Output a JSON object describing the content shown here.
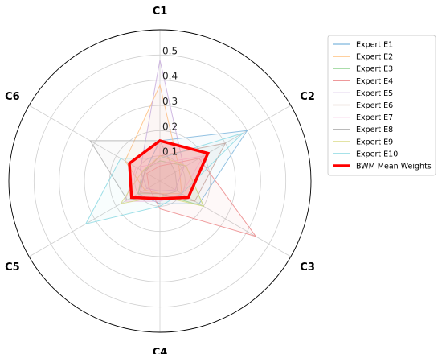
{
  "chart_data": {
    "type": "radar",
    "axes": [
      "C1",
      "C2",
      "C3",
      "C4",
      "C5",
      "C6"
    ],
    "r_ticks": [
      0.1,
      0.2,
      0.3,
      0.4,
      0.5
    ],
    "r_tick_labels": [
      "0.1",
      "0.2",
      "0.3",
      "0.4",
      "0.5"
    ],
    "rlim": [
      0,
      0.6
    ],
    "grid": true,
    "legend_position": "top-right",
    "series": [
      {
        "name": "Expert E1",
        "color": "#7fb6dd",
        "values": [
          0.16,
          0.4,
          0.18,
          0.09,
          0.1,
          0.07
        ],
        "fill": false,
        "width": 1
      },
      {
        "name": "Expert E2",
        "color": "#ffc07f",
        "values": [
          0.38,
          0.09,
          0.1,
          0.05,
          0.07,
          0.16
        ],
        "fill": false,
        "width": 1
      },
      {
        "name": "Expert E3",
        "color": "#8ed28e",
        "values": [
          0.08,
          0.12,
          0.2,
          0.05,
          0.1,
          0.08
        ],
        "fill": false,
        "width": 1
      },
      {
        "name": "Expert E4",
        "color": "#ec8a8b",
        "values": [
          0.06,
          0.18,
          0.44,
          0.11,
          0.05,
          0.06
        ],
        "fill": false,
        "width": 1
      },
      {
        "name": "Expert E5",
        "color": "#c8addd",
        "values": [
          0.48,
          0.11,
          0.07,
          0.04,
          0.06,
          0.09
        ],
        "fill": false,
        "width": 1
      },
      {
        "name": "Expert E6",
        "color": "#c4a29b",
        "values": [
          0.1,
          0.3,
          0.16,
          0.05,
          0.09,
          0.07
        ],
        "fill": false,
        "width": 1
      },
      {
        "name": "Expert E7",
        "color": "#f2b8de",
        "values": [
          0.07,
          0.2,
          0.1,
          0.08,
          0.16,
          0.11
        ],
        "fill": false,
        "width": 1
      },
      {
        "name": "Expert E8",
        "color": "#b0b0b0",
        "values": [
          0.16,
          0.07,
          0.08,
          0.06,
          0.15,
          0.32
        ],
        "fill": false,
        "width": 1
      },
      {
        "name": "Expert E9",
        "color": "#dada85",
        "values": [
          0.1,
          0.12,
          0.2,
          0.06,
          0.18,
          0.08
        ],
        "fill": false,
        "width": 1
      },
      {
        "name": "Expert E10",
        "color": "#8ad8e2",
        "values": [
          0.09,
          0.38,
          0.1,
          0.1,
          0.34,
          0.18
        ],
        "fill": false,
        "width": 1
      },
      {
        "name": "BWM Mean Weights",
        "color": "#ff0000",
        "values": [
          0.16,
          0.22,
          0.13,
          0.07,
          0.13,
          0.14
        ],
        "fill": true,
        "fill_color": "#ff9999",
        "width": 3.5
      }
    ]
  }
}
